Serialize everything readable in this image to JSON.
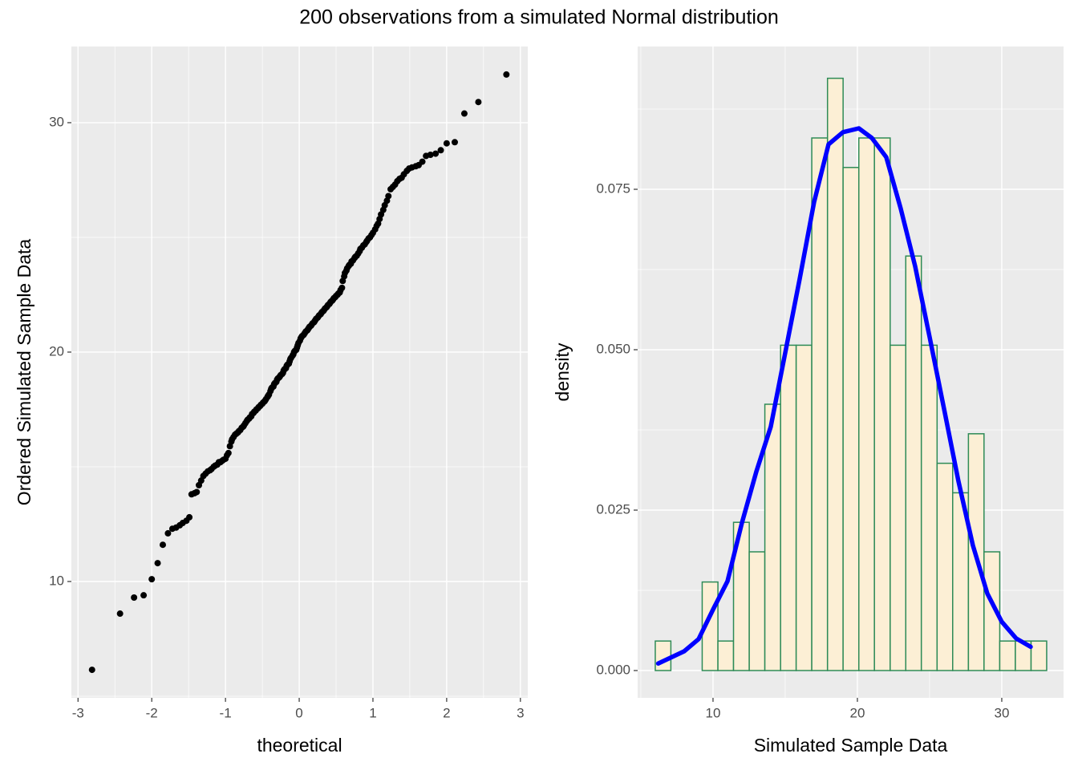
{
  "title": "200 observations from a simulated Normal distribution",
  "chart_data": [
    {
      "type": "scatter",
      "x_label": "theoretical",
      "y_label": "Ordered Simulated Sample Data",
      "color": "#000000",
      "xlim": [
        -3.09,
        3.1
      ],
      "ylim": [
        4.93,
        33.32
      ],
      "xticks": [
        -3,
        -2,
        -1,
        0,
        1,
        2,
        3
      ],
      "yticks": [
        10,
        20,
        30
      ],
      "grid": true,
      "x": [
        -2.81,
        -2.43,
        -2.24,
        -2.11,
        -2.0,
        -1.92,
        -1.85,
        -1.78,
        -1.72,
        -1.67,
        -1.62,
        -1.58,
        -1.53,
        -1.49,
        -1.46,
        -1.42,
        -1.39,
        -1.36,
        -1.33,
        -1.3,
        -1.27,
        -1.24,
        -1.21,
        -1.19,
        -1.16,
        -1.14,
        -1.11,
        -1.09,
        -1.07,
        -1.05,
        -1.03,
        -1.0,
        -0.98,
        -0.96,
        -0.94,
        -0.92,
        -0.91,
        -0.89,
        -0.87,
        -0.85,
        -0.83,
        -0.82,
        -0.8,
        -0.78,
        -0.76,
        -0.75,
        -0.73,
        -0.71,
        -0.7,
        -0.68,
        -0.67,
        -0.65,
        -0.64,
        -0.62,
        -0.61,
        -0.59,
        -0.58,
        -0.56,
        -0.55,
        -0.53,
        -0.52,
        -0.5,
        -0.49,
        -0.47,
        -0.46,
        -0.45,
        -0.43,
        -0.42,
        -0.41,
        -0.39,
        -0.38,
        -0.37,
        -0.35,
        -0.34,
        -0.33,
        -0.31,
        -0.3,
        -0.29,
        -0.27,
        -0.26,
        -0.25,
        -0.23,
        -0.22,
        -0.21,
        -0.2,
        -0.18,
        -0.17,
        -0.16,
        -0.14,
        -0.13,
        -0.12,
        -0.11,
        -0.09,
        -0.08,
        -0.07,
        -0.06,
        -0.04,
        -0.03,
        -0.02,
        -0.01,
        0.01,
        0.02,
        0.03,
        0.04,
        0.06,
        0.07,
        0.08,
        0.09,
        0.11,
        0.12,
        0.13,
        0.14,
        0.16,
        0.17,
        0.18,
        0.2,
        0.21,
        0.22,
        0.23,
        0.25,
        0.26,
        0.27,
        0.29,
        0.3,
        0.31,
        0.33,
        0.34,
        0.35,
        0.37,
        0.38,
        0.39,
        0.41,
        0.42,
        0.43,
        0.45,
        0.46,
        0.47,
        0.49,
        0.5,
        0.52,
        0.53,
        0.55,
        0.56,
        0.58,
        0.59,
        0.61,
        0.62,
        0.64,
        0.65,
        0.67,
        0.68,
        0.7,
        0.71,
        0.73,
        0.75,
        0.76,
        0.78,
        0.8,
        0.82,
        0.83,
        0.85,
        0.87,
        0.89,
        0.91,
        0.92,
        0.94,
        0.96,
        0.98,
        1.0,
        1.03,
        1.05,
        1.07,
        1.09,
        1.11,
        1.14,
        1.16,
        1.19,
        1.21,
        1.24,
        1.27,
        1.3,
        1.33,
        1.36,
        1.39,
        1.42,
        1.46,
        1.49,
        1.53,
        1.58,
        1.62,
        1.67,
        1.72,
        1.78,
        1.85,
        1.92,
        2.0,
        2.11,
        2.24,
        2.43,
        2.81
      ],
      "y": [
        6.15,
        8.6,
        9.3,
        9.4,
        10.1,
        10.8,
        11.6,
        12.1,
        12.3,
        12.35,
        12.45,
        12.55,
        12.65,
        12.8,
        13.8,
        13.85,
        13.9,
        14.2,
        14.4,
        14.6,
        14.7,
        14.8,
        14.85,
        14.9,
        15.0,
        15.05,
        15.1,
        15.2,
        15.2,
        15.25,
        15.3,
        15.35,
        15.5,
        15.6,
        15.9,
        16.1,
        16.2,
        16.3,
        16.4,
        16.45,
        16.5,
        16.55,
        16.6,
        16.7,
        16.75,
        16.8,
        16.9,
        17.0,
        17.05,
        17.1,
        17.15,
        17.2,
        17.3,
        17.35,
        17.4,
        17.45,
        17.5,
        17.55,
        17.6,
        17.65,
        17.7,
        17.75,
        17.8,
        17.85,
        17.9,
        17.95,
        18.05,
        18.1,
        18.15,
        18.3,
        18.4,
        18.45,
        18.5,
        18.6,
        18.65,
        18.7,
        18.8,
        18.85,
        18.9,
        18.95,
        19.0,
        19.05,
        19.1,
        19.2,
        19.25,
        19.3,
        19.4,
        19.45,
        19.5,
        19.6,
        19.7,
        19.75,
        19.85,
        19.9,
        20.0,
        20.05,
        20.1,
        20.2,
        20.3,
        20.4,
        20.5,
        20.6,
        20.65,
        20.7,
        20.75,
        20.8,
        20.85,
        20.9,
        20.95,
        21.0,
        21.05,
        21.1,
        21.15,
        21.2,
        21.25,
        21.3,
        21.35,
        21.4,
        21.45,
        21.5,
        21.55,
        21.6,
        21.65,
        21.7,
        21.75,
        21.8,
        21.85,
        21.9,
        21.95,
        22.0,
        22.05,
        22.1,
        22.15,
        22.2,
        22.25,
        22.3,
        22.35,
        22.4,
        22.45,
        22.5,
        22.55,
        22.6,
        22.7,
        22.8,
        23.1,
        23.3,
        23.45,
        23.55,
        23.65,
        23.75,
        23.8,
        23.85,
        23.95,
        24.0,
        24.1,
        24.15,
        24.2,
        24.3,
        24.4,
        24.5,
        24.55,
        24.65,
        24.7,
        24.8,
        24.85,
        24.95,
        25.0,
        25.1,
        25.2,
        25.35,
        25.5,
        25.6,
        25.8,
        26.0,
        26.2,
        26.4,
        26.6,
        26.8,
        27.1,
        27.2,
        27.3,
        27.45,
        27.55,
        27.6,
        27.75,
        27.9,
        28.0,
        28.05,
        28.1,
        28.15,
        28.3,
        28.55,
        28.6,
        28.65,
        28.8,
        29.1,
        29.15,
        30.4,
        30.9,
        32.1
      ]
    },
    {
      "type": "histogram",
      "x_label": "Simulated Sample Data",
      "y_label": "density",
      "fill": "#fcefd5",
      "edge_color": "#2e8b57",
      "xlim": [
        4.78,
        34.28
      ],
      "ylim": [
        -0.00425,
        0.09725
      ],
      "xticks": [
        10,
        20,
        30
      ],
      "yticks": [
        {
          "value": 0,
          "label": "0.000"
        },
        {
          "value": 0.025,
          "label": "0.025"
        },
        {
          "value": 0.05,
          "label": "0.050"
        },
        {
          "value": 0.075,
          "label": "0.075"
        }
      ],
      "grid": true,
      "bins": [
        6.0,
        7.08,
        8.17,
        9.25,
        10.34,
        11.42,
        12.51,
        13.59,
        14.68,
        15.76,
        16.84,
        17.93,
        19.01,
        20.1,
        21.18,
        22.27,
        23.35,
        24.43,
        25.52,
        26.6,
        27.69,
        28.77,
        29.86,
        30.94,
        32.03,
        33.11
      ],
      "values": [
        0.0046,
        0,
        0,
        0.0138,
        0.0046,
        0.0231,
        0.0185,
        0.0415,
        0.0507,
        0.0507,
        0.083,
        0.0923,
        0.0784,
        0.083,
        0.083,
        0.0507,
        0.0646,
        0.0507,
        0.0323,
        0.0277,
        0.0369,
        0.0185,
        0.0046,
        0.0046,
        0.0046
      ],
      "density_curve": {
        "color": "#0000ff",
        "x": [
          6.2,
          8,
          9,
          10,
          11,
          12,
          13,
          14,
          15,
          16,
          17,
          18,
          19,
          20.1,
          21,
          22,
          23,
          24,
          25,
          26,
          27,
          28,
          29,
          30,
          31,
          32
        ],
        "y": [
          0.0011,
          0.003,
          0.0049,
          0.0095,
          0.0139,
          0.023,
          0.031,
          0.038,
          0.0495,
          0.061,
          0.073,
          0.082,
          0.0839,
          0.0845,
          0.083,
          0.08,
          0.072,
          0.063,
          0.052,
          0.0408,
          0.0295,
          0.0195,
          0.012,
          0.0076,
          0.005,
          0.0037
        ]
      }
    }
  ]
}
